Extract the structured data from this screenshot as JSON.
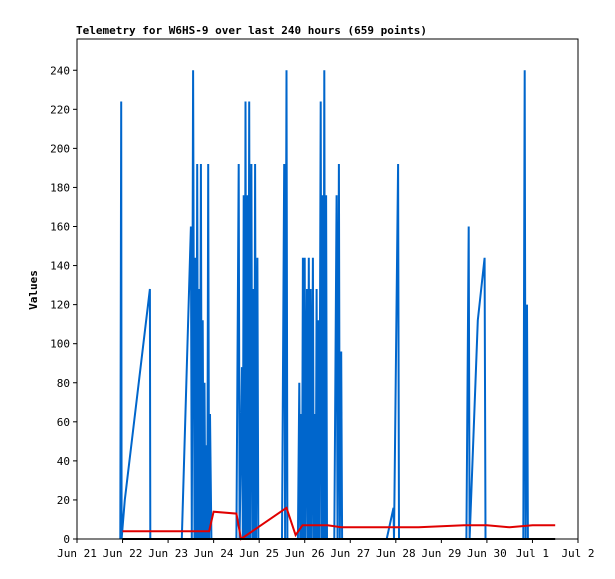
{
  "chart_data": {
    "type": "line",
    "title": "Telemetry for W6HS-9 over last 240 hours (659 points)",
    "xlabel": "",
    "ylabel": "Values",
    "xlim": [
      0,
      11
    ],
    "ylim": [
      0,
      256
    ],
    "x_ticks": [
      "Jun 21",
      "Jun 22",
      "Jun 23",
      "Jun 24",
      "Jun 25",
      "Jun 26",
      "Jun 27",
      "Jun 28",
      "Jun 29",
      "Jun 30",
      "Jul 1",
      "Jul 2"
    ],
    "y_ticks": [
      0,
      20,
      40,
      60,
      80,
      100,
      120,
      140,
      160,
      180,
      200,
      220,
      240
    ],
    "grid": false,
    "legend": "none",
    "series": [
      {
        "color": "#0066cc",
        "points": [
          [
            0.95,
            0
          ],
          [
            0.97,
            224
          ],
          [
            0.98,
            0
          ],
          [
            1.05,
            20
          ],
          [
            1.6,
            128
          ],
          [
            1.61,
            0
          ],
          [
            2.3,
            0
          ],
          [
            2.5,
            160
          ],
          [
            2.52,
            0
          ],
          [
            2.55,
            240
          ],
          [
            2.58,
            0
          ],
          [
            2.6,
            144
          ],
          [
            2.62,
            0
          ],
          [
            2.64,
            192
          ],
          [
            2.66,
            0
          ],
          [
            2.68,
            128
          ],
          [
            2.7,
            0
          ],
          [
            2.72,
            192
          ],
          [
            2.74,
            0
          ],
          [
            2.76,
            112
          ],
          [
            2.78,
            0
          ],
          [
            2.8,
            80
          ],
          [
            2.82,
            0
          ],
          [
            2.84,
            48
          ],
          [
            2.86,
            0
          ],
          [
            2.88,
            192
          ],
          [
            2.9,
            0
          ],
          [
            2.92,
            64
          ],
          [
            2.95,
            0
          ],
          [
            3.5,
            0
          ],
          [
            3.55,
            192
          ],
          [
            3.57,
            0
          ],
          [
            3.62,
            88
          ],
          [
            3.64,
            0
          ],
          [
            3.66,
            176
          ],
          [
            3.68,
            0
          ],
          [
            3.7,
            224
          ],
          [
            3.72,
            0
          ],
          [
            3.74,
            176
          ],
          [
            3.76,
            0
          ],
          [
            3.78,
            224
          ],
          [
            3.8,
            0
          ],
          [
            3.83,
            192
          ],
          [
            3.85,
            0
          ],
          [
            3.87,
            128
          ],
          [
            3.89,
            0
          ],
          [
            3.91,
            192
          ],
          [
            3.93,
            0
          ],
          [
            3.96,
            144
          ],
          [
            3.98,
            0
          ],
          [
            4.5,
            0
          ],
          [
            4.55,
            192
          ],
          [
            4.57,
            0
          ],
          [
            4.6,
            240
          ],
          [
            4.62,
            0
          ],
          [
            4.85,
            0
          ],
          [
            4.88,
            80
          ],
          [
            4.9,
            0
          ],
          [
            4.92,
            64
          ],
          [
            4.94,
            0
          ],
          [
            4.96,
            144
          ],
          [
            4.98,
            0
          ],
          [
            5.0,
            144
          ],
          [
            5.02,
            0
          ],
          [
            5.05,
            128
          ],
          [
            5.07,
            0
          ],
          [
            5.09,
            144
          ],
          [
            5.11,
            0
          ],
          [
            5.13,
            128
          ],
          [
            5.15,
            0
          ],
          [
            5.18,
            144
          ],
          [
            5.2,
            0
          ],
          [
            5.22,
            64
          ],
          [
            5.24,
            0
          ],
          [
            5.26,
            128
          ],
          [
            5.28,
            0
          ],
          [
            5.3,
            112
          ],
          [
            5.32,
            0
          ],
          [
            5.35,
            224
          ],
          [
            5.37,
            0
          ],
          [
            5.39,
            176
          ],
          [
            5.41,
            0
          ],
          [
            5.43,
            240
          ],
          [
            5.45,
            0
          ],
          [
            5.47,
            176
          ],
          [
            5.49,
            0
          ],
          [
            5.65,
            0
          ],
          [
            5.7,
            176
          ],
          [
            5.72,
            0
          ],
          [
            5.75,
            192
          ],
          [
            5.77,
            0
          ],
          [
            5.8,
            96
          ],
          [
            5.82,
            0
          ],
          [
            6.8,
            0
          ],
          [
            6.95,
            16
          ],
          [
            6.96,
            0
          ],
          [
            7.05,
            192
          ],
          [
            7.07,
            0
          ],
          [
            8.55,
            0
          ],
          [
            8.6,
            160
          ],
          [
            8.62,
            0
          ],
          [
            8.8,
            112
          ],
          [
            8.95,
            144
          ],
          [
            8.97,
            0
          ],
          [
            9.8,
            0
          ],
          [
            9.83,
            240
          ],
          [
            9.85,
            0
          ],
          [
            9.88,
            120
          ],
          [
            9.9,
            0
          ]
        ]
      },
      {
        "color": "#e00000",
        "points": [
          [
            1.0,
            4
          ],
          [
            2.5,
            4
          ],
          [
            2.9,
            4
          ],
          [
            3.0,
            14
          ],
          [
            3.5,
            13
          ],
          [
            3.6,
            0
          ],
          [
            4.6,
            16
          ],
          [
            4.8,
            2
          ],
          [
            4.95,
            7
          ],
          [
            5.5,
            7
          ],
          [
            5.8,
            6
          ],
          [
            6.3,
            6
          ],
          [
            7.0,
            6
          ],
          [
            7.5,
            6
          ],
          [
            8.5,
            7
          ],
          [
            9.0,
            7
          ],
          [
            9.5,
            6
          ],
          [
            10.0,
            7
          ],
          [
            10.5,
            7
          ]
        ]
      },
      {
        "color": "#000000",
        "points": [
          [
            1.0,
            0
          ],
          [
            10.5,
            0
          ]
        ]
      }
    ]
  }
}
